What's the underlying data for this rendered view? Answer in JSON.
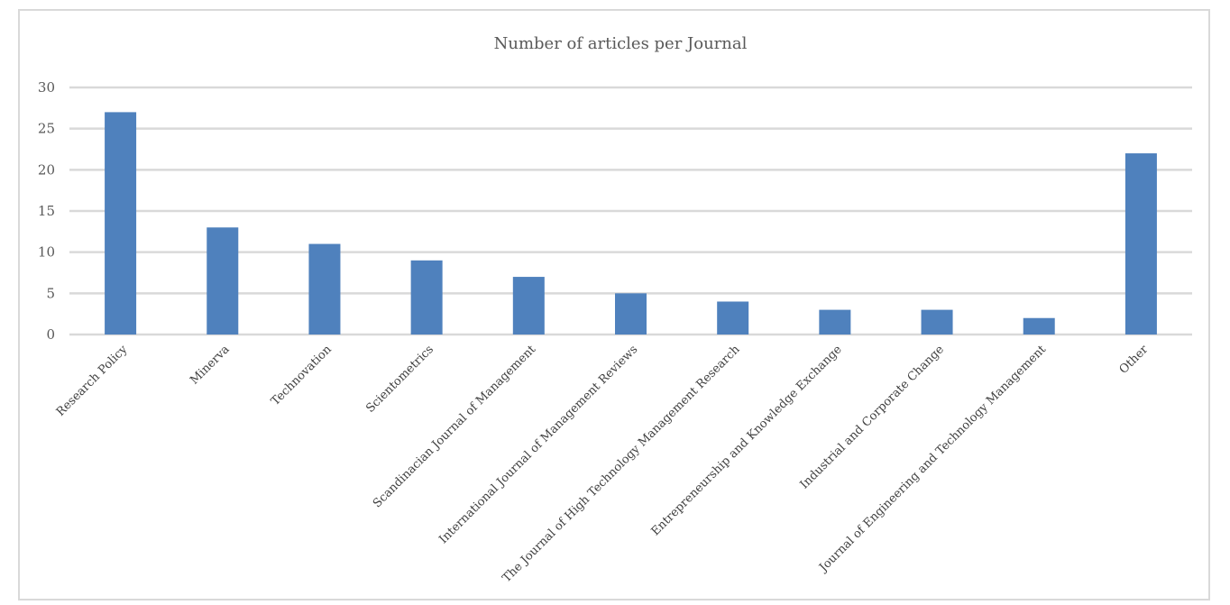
{
  "chart_data": {
    "type": "bar",
    "title": "Number of articles per Journal",
    "categories": [
      "Research Policy",
      "Minerva",
      "Technovation",
      "Scientometrics",
      "Scandinacian Journal of Management",
      "International Journal of Management Reviews",
      "The Journal of High Technology Management Research",
      "Entrepreneurship and Knowledge Exchange",
      "Industrial and Corporate Change",
      "Journal of Engineering and Technology Management",
      "Other"
    ],
    "values": [
      27,
      13,
      11,
      9,
      7,
      5,
      4,
      3,
      3,
      2,
      22
    ],
    "ylim": [
      0,
      30
    ],
    "yticks": [
      0,
      5,
      10,
      15,
      20,
      25,
      30
    ],
    "xlabel": "",
    "ylabel": "",
    "grid": true,
    "legend": "none",
    "colors": {
      "bar": "#4f81bd",
      "grid": "#d9d9d9",
      "axis_text": "#595959"
    }
  }
}
